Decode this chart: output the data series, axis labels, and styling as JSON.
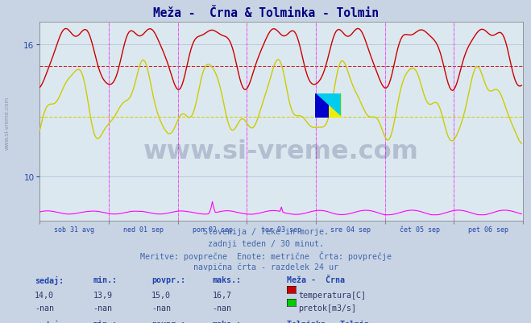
{
  "title": "Meža -  Črna & Tolminka - Tolmin",
  "title_color": "#000080",
  "bg_color": "#c8d4e4",
  "plot_bg_color": "#dce8f0",
  "grid_color": "#b0bcd0",
  "n_points": 336,
  "ylim": [
    8,
    17
  ],
  "ytick_val": 16,
  "ytick_mid": 10,
  "meža_temp_color": "#cc0000",
  "meža_pretok_color": "#00cc00",
  "tolminka_temp_color": "#cccc00",
  "tolminka_pretok_color": "#ff00ff",
  "meža_temp_avg": 15.0,
  "tolminka_temp_avg": 12.7,
  "xlabel_dates": [
    "sob 31 avg",
    "ned 01 sep",
    "pon 02 sep",
    "tor 03 sep",
    "sre 04 sep",
    "čet 05 sep",
    "pet 06 sep"
  ],
  "subtitle_lines": [
    "Slovenija / reke in morje.",
    "zadnji teden / 30 minut.",
    "Meritve: povprečne  Enote: metrične  Črta: povprečje",
    "navpična črta - razdelek 24 ur"
  ],
  "text_color": "#4466aa",
  "label_color": "#2244aa",
  "val_color": "#333366"
}
